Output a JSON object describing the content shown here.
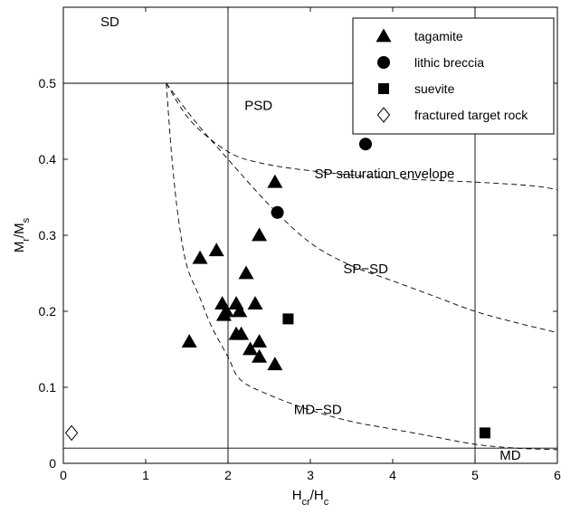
{
  "chart_data": {
    "type": "scatter",
    "xlabel": "H_cr/H_c",
    "ylabel": "M_r/M_s",
    "xlim": [
      0,
      6
    ],
    "ylim": [
      0,
      0.6
    ],
    "xticks": [
      "0",
      "1",
      "2",
      "3",
      "4",
      "5",
      "6"
    ],
    "xtick_values": [
      0,
      1,
      2,
      3,
      4,
      5,
      6
    ],
    "yticks": [
      "0",
      "0.1",
      "0.2",
      "0.3",
      "0.4",
      "0.5"
    ],
    "ytick_values": [
      0,
      0.1,
      0.2,
      0.3,
      0.4,
      0.5
    ],
    "grid": false,
    "legend_position": "top-right",
    "series": [
      {
        "name": "tagamite",
        "marker": "triangle",
        "points": [
          [
            1.53,
            0.16
          ],
          [
            1.66,
            0.27
          ],
          [
            1.86,
            0.28
          ],
          [
            1.93,
            0.21
          ],
          [
            1.95,
            0.195
          ],
          [
            1.98,
            0.2
          ],
          [
            2.1,
            0.21
          ],
          [
            2.14,
            0.2
          ],
          [
            2.1,
            0.17
          ],
          [
            2.16,
            0.17
          ],
          [
            2.22,
            0.25
          ],
          [
            2.27,
            0.15
          ],
          [
            2.33,
            0.21
          ],
          [
            2.38,
            0.3
          ],
          [
            2.38,
            0.16
          ],
          [
            2.38,
            0.14
          ],
          [
            2.57,
            0.37
          ],
          [
            2.57,
            0.13
          ]
        ]
      },
      {
        "name": "lithic breccia",
        "marker": "circle",
        "points": [
          [
            2.6,
            0.33
          ],
          [
            3.67,
            0.42
          ]
        ]
      },
      {
        "name": "suevite",
        "marker": "square",
        "points": [
          [
            2.73,
            0.19
          ],
          [
            5.12,
            0.04
          ]
        ]
      },
      {
        "name": "fractured target rock",
        "marker": "diamond-open",
        "points": [
          [
            0.1,
            0.04
          ]
        ]
      }
    ],
    "reference_lines": {
      "vertical": [
        2,
        5
      ],
      "horizontal": [
        0.5,
        0.02
      ]
    },
    "curves": [
      {
        "points": [
          [
            1.25,
            0.5
          ],
          [
            1.55,
            0.45
          ],
          [
            2.0,
            0.41
          ],
          [
            2.4,
            0.395
          ],
          [
            3.0,
            0.385
          ],
          [
            4.0,
            0.375
          ],
          [
            5.0,
            0.37
          ],
          [
            5.7,
            0.365
          ],
          [
            6.0,
            0.36
          ]
        ]
      },
      {
        "points": [
          [
            1.25,
            0.5
          ],
          [
            1.6,
            0.45
          ],
          [
            2.0,
            0.4
          ],
          [
            2.5,
            0.34
          ],
          [
            3.0,
            0.29
          ],
          [
            3.5,
            0.26
          ],
          [
            4.0,
            0.24
          ],
          [
            4.5,
            0.22
          ],
          [
            5.0,
            0.2
          ],
          [
            5.5,
            0.185
          ],
          [
            6.0,
            0.172
          ]
        ]
      },
      {
        "points": [
          [
            1.25,
            0.5
          ],
          [
            1.32,
            0.4
          ],
          [
            1.4,
            0.32
          ],
          [
            1.5,
            0.26
          ],
          [
            1.65,
            0.22
          ],
          [
            1.8,
            0.18
          ],
          [
            2.0,
            0.14
          ],
          [
            2.15,
            0.11
          ],
          [
            2.5,
            0.09
          ],
          [
            3.0,
            0.07
          ],
          [
            3.5,
            0.055
          ],
          [
            4.0,
            0.045
          ],
          [
            4.5,
            0.035
          ],
          [
            5.0,
            0.025
          ],
          [
            5.5,
            0.02
          ],
          [
            6.0,
            0.018
          ]
        ]
      }
    ],
    "annotations": [
      {
        "text": "SD",
        "x": 0.45,
        "y": 0.575
      },
      {
        "text": "PSD",
        "x": 2.2,
        "y": 0.465
      },
      {
        "text": "SP saturation envelope",
        "x": 3.05,
        "y": 0.375
      },
      {
        "text": "SP−SD",
        "x": 3.4,
        "y": 0.25
      },
      {
        "text": "MD−SD",
        "x": 2.8,
        "y": 0.065
      },
      {
        "text": "MD",
        "x": 5.3,
        "y": 0.005
      }
    ]
  }
}
